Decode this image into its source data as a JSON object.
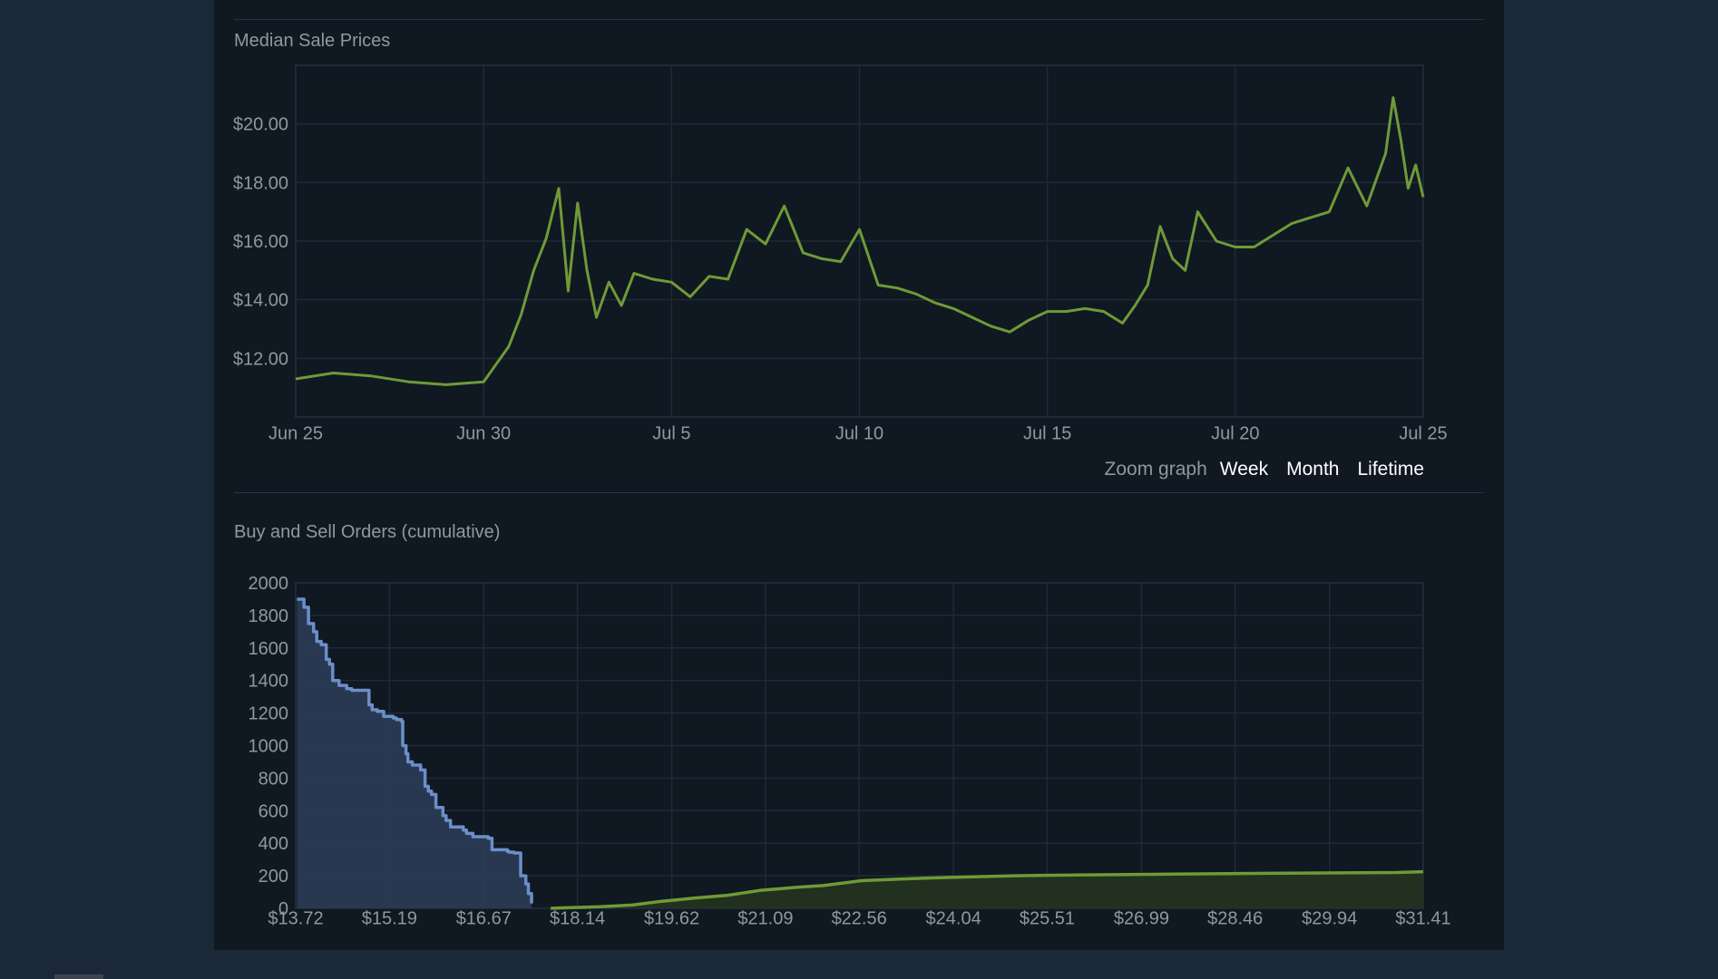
{
  "colors": {
    "page_bg": "#1b2838",
    "panel_bg": "#101822",
    "grid": "#1f2a36",
    "median_line": "#6f9a37",
    "buy_line": "#6b8fc9",
    "buy_fill": "#2c3c57",
    "sell_line": "#6f9a37",
    "sell_fill": "#24331f",
    "axis_text": "#8f98a0"
  },
  "zoom": {
    "label": "Zoom graph",
    "week": "Week",
    "month": "Month",
    "lifetime": "Lifetime"
  },
  "chart_data": [
    {
      "type": "line",
      "title": "Median Sale Prices",
      "xlabel": "",
      "ylabel": "",
      "x_tick_labels": [
        "Jun 25",
        "Jun 30",
        "Jul 5",
        "Jul 10",
        "Jul 15",
        "Jul 20",
        "Jul 25"
      ],
      "y_tick_labels": [
        "$12.00",
        "$14.00",
        "$16.00",
        "$18.00",
        "$20.00"
      ],
      "y_ticks": [
        12,
        14,
        16,
        18,
        20
      ],
      "xlim": [
        "Jun 25",
        "Jul 25"
      ],
      "ylim": [
        10.0,
        22.0
      ],
      "grid": true,
      "x": [
        "Jun 25",
        "Jun 26",
        "Jun 27",
        "Jun 28",
        "Jun 29",
        "Jun 30",
        "Jun 30",
        "Jun 30",
        "Jul 1",
        "Jul 1",
        "Jul 1",
        "Jul 2",
        "Jul 2",
        "Jul 2",
        "Jul 2",
        "Jul 3",
        "Jul 3",
        "Jul 3",
        "Jul 4",
        "Jul 4",
        "Jul 5",
        "Jul 5",
        "Jul 6",
        "Jul 6",
        "Jul 7",
        "Jul 7",
        "Jul 8",
        "Jul 8",
        "Jul 9",
        "Jul 9",
        "Jul 10",
        "Jul 10",
        "Jul 11",
        "Jul 11",
        "Jul 12",
        "Jul 12",
        "Jul 13",
        "Jul 13",
        "Jul 14",
        "Jul 14",
        "Jul 15",
        "Jul 15",
        "Jul 16",
        "Jul 16",
        "Jul 17",
        "Jul 17",
        "Jul 17",
        "Jul 18",
        "Jul 18",
        "Jul 18",
        "Jul 19",
        "Jul 19",
        "Jul 20",
        "Jul 20",
        "Jul 21",
        "Jul 21",
        "Jul 22",
        "Jul 22",
        "Jul 23",
        "Jul 23",
        "Jul 24",
        "Jul 24",
        "Jul 24",
        "Jul 24",
        "Jul 24",
        "Jul 25"
      ],
      "series": [
        {
          "name": "",
          "values": [
            11.3,
            11.5,
            11.4,
            11.2,
            11.1,
            11.2,
            11.8,
            12.4,
            13.5,
            15.0,
            16.1,
            17.8,
            14.3,
            17.3,
            15.0,
            13.4,
            14.6,
            13.8,
            14.9,
            14.7,
            14.6,
            14.1,
            14.8,
            14.7,
            16.4,
            15.9,
            17.2,
            15.6,
            15.4,
            15.3,
            16.4,
            14.5,
            14.4,
            14.2,
            13.9,
            13.7,
            13.4,
            13.1,
            12.9,
            13.3,
            13.6,
            13.6,
            13.7,
            13.6,
            13.2,
            13.8,
            14.5,
            16.5,
            15.4,
            15.0,
            17.0,
            16.0,
            15.8,
            15.8,
            16.2,
            16.6,
            16.8,
            17.0,
            18.5,
            17.2,
            19.0,
            20.9,
            19.5,
            17.8,
            18.6,
            17.5
          ]
        }
      ]
    },
    {
      "type": "area",
      "title": "Buy and Sell Orders (cumulative)",
      "xlabel": "",
      "ylabel": "",
      "x_tick_labels": [
        "$13.72",
        "$15.19",
        "$16.67",
        "$18.14",
        "$19.62",
        "$21.09",
        "$22.56",
        "$24.04",
        "$25.51",
        "$26.99",
        "$28.46",
        "$29.94",
        "$31.41"
      ],
      "x_ticks": [
        13.72,
        15.19,
        16.67,
        18.14,
        19.62,
        21.09,
        22.56,
        24.04,
        25.51,
        26.99,
        28.46,
        29.94,
        31.41
      ],
      "y_tick_labels": [
        "0",
        "200",
        "400",
        "600",
        "800",
        "1000",
        "1200",
        "1400",
        "1600",
        "1800",
        "2000"
      ],
      "y_ticks": [
        0,
        200,
        400,
        600,
        800,
        1000,
        1200,
        1400,
        1600,
        1800,
        2000
      ],
      "xlim": [
        13.72,
        31.41
      ],
      "ylim": [
        0,
        2000
      ],
      "grid": true,
      "series": [
        {
          "name": "",
          "x": [
            13.74,
            13.85,
            13.92,
            14.0,
            14.05,
            14.12,
            14.2,
            14.25,
            14.3,
            14.4,
            14.52,
            14.6,
            14.82,
            14.87,
            14.92,
            15.0,
            15.1,
            15.25,
            15.3,
            15.38,
            15.4,
            15.45,
            15.48,
            15.55,
            15.68,
            15.75,
            15.8,
            15.85,
            15.92,
            16.03,
            16.08,
            16.15,
            16.35,
            16.4,
            16.5,
            16.74,
            16.8,
            17.04,
            17.07,
            17.15,
            17.25,
            17.33,
            17.37,
            17.42
          ],
          "values": [
            1900,
            1850,
            1750,
            1700,
            1640,
            1620,
            1530,
            1500,
            1400,
            1370,
            1350,
            1340,
            1340,
            1250,
            1220,
            1210,
            1180,
            1170,
            1160,
            1150,
            1000,
            950,
            900,
            880,
            850,
            750,
            720,
            700,
            620,
            570,
            540,
            500,
            480,
            460,
            440,
            430,
            360,
            350,
            345,
            340,
            200,
            150,
            90,
            30
          ]
        },
        {
          "name": "",
          "x": [
            17.72,
            18.5,
            19.0,
            19.4,
            19.9,
            20.5,
            21.0,
            21.6,
            22.0,
            22.4,
            22.6,
            23.2,
            24.0,
            25.0,
            26.0,
            27.5,
            29.0,
            31.0,
            31.41
          ],
          "values": [
            0,
            10,
            20,
            40,
            60,
            80,
            110,
            130,
            140,
            160,
            170,
            180,
            190,
            200,
            205,
            210,
            215,
            220,
            225
          ]
        }
      ]
    }
  ]
}
